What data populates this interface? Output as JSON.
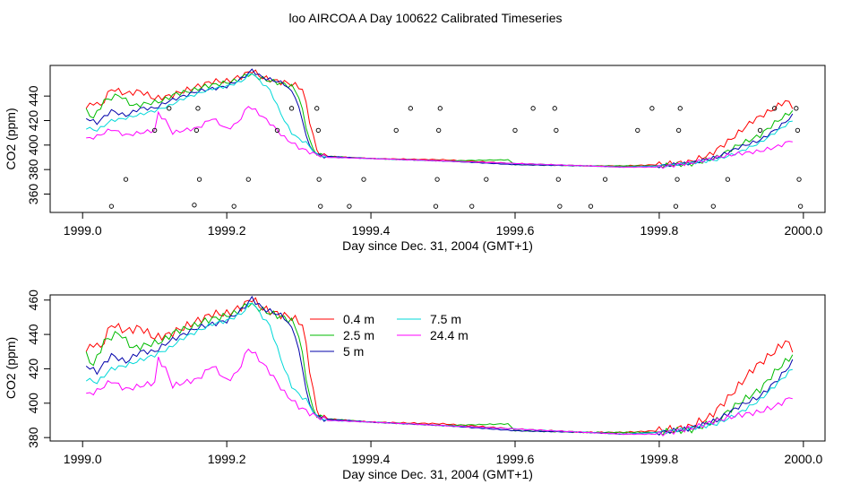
{
  "page_title": "loo AIRCOA A  Day 100622  Calibrated Timeseries",
  "chart_data": [
    {
      "type": "line",
      "xlabel": "Day since Dec. 31, 2004 (GMT+1)",
      "ylabel": "CO2 (ppm)",
      "xlim": [
        1998.955,
        2000.03
      ],
      "ylim": [
        345,
        465
      ],
      "xticks": [
        "1999.0",
        "1999.2",
        "1999.4",
        "1999.6",
        "1999.8",
        "2000.0"
      ],
      "yticks": [
        "360",
        "380",
        "400",
        "420",
        "440"
      ],
      "grid": false,
      "legend": "none",
      "series": [
        {
          "label": "0.4 m",
          "color": "#ff0000",
          "style": "line"
        },
        {
          "label": "2.5 m",
          "color": "#00bb00",
          "style": "line"
        },
        {
          "label": "5 m",
          "color": "#0000aa",
          "style": "line"
        },
        {
          "label": "7.5 m",
          "color": "#00d8d8",
          "style": "line"
        },
        {
          "label": "24.4 m",
          "color": "#ff00ff",
          "style": "line"
        },
        {
          "label": "",
          "color": "#000000",
          "style": "points",
          "points": [
            [
              1999.04,
              350
            ],
            [
              1999.06,
              372
            ],
            [
              1999.1,
              412
            ],
            [
              1999.12,
              430
            ],
            [
              1999.155,
              351
            ],
            [
              1999.158,
              412
            ],
            [
              1999.16,
              430
            ],
            [
              1999.162,
              372
            ],
            [
              1999.21,
              350
            ],
            [
              1999.23,
              372
            ],
            [
              1999.27,
              412
            ],
            [
              1999.29,
              430
            ],
            [
              1999.325,
              430
            ],
            [
              1999.327,
              412
            ],
            [
              1999.328,
              372
            ],
            [
              1999.33,
              350
            ],
            [
              1999.37,
              350
            ],
            [
              1999.39,
              372
            ],
            [
              1999.435,
              412
            ],
            [
              1999.455,
              430
            ],
            [
              1999.49,
              350
            ],
            [
              1999.492,
              372
            ],
            [
              1999.494,
              412
            ],
            [
              1999.496,
              430
            ],
            [
              1999.54,
              350
            ],
            [
              1999.56,
              372
            ],
            [
              1999.6,
              412
            ],
            [
              1999.625,
              430
            ],
            [
              1999.655,
              430
            ],
            [
              1999.657,
              412
            ],
            [
              1999.66,
              372
            ],
            [
              1999.662,
              350
            ],
            [
              1999.705,
              350
            ],
            [
              1999.725,
              372
            ],
            [
              1999.77,
              412
            ],
            [
              1999.79,
              430
            ],
            [
              1999.823,
              350
            ],
            [
              1999.825,
              372
            ],
            [
              1999.827,
              412
            ],
            [
              1999.829,
              430
            ],
            [
              1999.875,
              350
            ],
            [
              1999.895,
              372
            ],
            [
              1999.94,
              412
            ],
            [
              1999.96,
              430
            ],
            [
              1999.99,
              430
            ],
            [
              1999.992,
              412
            ],
            [
              1999.994,
              372
            ],
            [
              1999.996,
              350
            ]
          ]
        }
      ]
    },
    {
      "type": "line",
      "xlabel": "Day since Dec. 31, 2004 (GMT+1)",
      "ylabel": "CO2 (ppm)",
      "xlim": [
        1998.955,
        2000.03
      ],
      "ylim": [
        378,
        463
      ],
      "xticks": [
        "1999.0",
        "1999.2",
        "1999.4",
        "1999.6",
        "1999.8",
        "2000.0"
      ],
      "yticks": [
        "380",
        "400",
        "420",
        "440",
        "460"
      ],
      "grid": false,
      "legend": "top-center",
      "series": [
        {
          "name": "0.4 m",
          "color": "#ff0000",
          "style": "line"
        },
        {
          "name": "2.5 m",
          "color": "#00bb00",
          "style": "line"
        },
        {
          "name": "5 m",
          "color": "#0000aa",
          "style": "line"
        },
        {
          "name": "7.5 m",
          "color": "#00d8d8",
          "style": "line"
        },
        {
          "name": "24.4 m",
          "color": "#ff00ff",
          "style": "line"
        }
      ]
    }
  ],
  "series_values": {
    "x_start": 1999.005,
    "x_step": 0.005,
    "keypoints": [
      [
        [
          1999.005,
          430
        ],
        [
          1999.015,
          435
        ],
        [
          1999.025,
          432
        ],
        [
          1999.04,
          446
        ],
        [
          1999.06,
          442
        ],
        [
          1999.08,
          444
        ],
        [
          1999.1,
          438
        ],
        [
          1999.12,
          440
        ],
        [
          1999.14,
          444
        ],
        [
          1999.16,
          448
        ],
        [
          1999.18,
          452
        ],
        [
          1999.2,
          452
        ],
        [
          1999.22,
          456
        ],
        [
          1999.235,
          461
        ],
        [
          1999.25,
          455
        ],
        [
          1999.27,
          452
        ],
        [
          1999.29,
          450
        ],
        [
          1999.305,
          446
        ],
        [
          1999.315,
          420
        ],
        [
          1999.325,
          395
        ],
        [
          1999.335,
          391
        ],
        [
          1999.4,
          389
        ],
        [
          1999.5,
          388
        ],
        [
          1999.6,
          385
        ],
        [
          1999.7,
          383
        ],
        [
          1999.75,
          383
        ],
        [
          1999.8,
          384
        ],
        [
          1999.84,
          386
        ],
        [
          1999.87,
          392
        ],
        [
          1999.9,
          405
        ],
        [
          1999.93,
          420
        ],
        [
          1999.96,
          430
        ],
        [
          1999.975,
          436
        ],
        [
          1999.985,
          432
        ]
      ],
      [
        [
          1999.005,
          428
        ],
        [
          1999.015,
          422
        ],
        [
          1999.03,
          436
        ],
        [
          1999.05,
          441
        ],
        [
          1999.07,
          432
        ],
        [
          1999.09,
          434
        ],
        [
          1999.11,
          436
        ],
        [
          1999.13,
          442
        ],
        [
          1999.15,
          444
        ],
        [
          1999.17,
          448
        ],
        [
          1999.19,
          450
        ],
        [
          1999.21,
          452
        ],
        [
          1999.23,
          458
        ],
        [
          1999.25,
          454
        ],
        [
          1999.27,
          451
        ],
        [
          1999.29,
          448
        ],
        [
          1999.3,
          440
        ],
        [
          1999.31,
          415
        ],
        [
          1999.32,
          395
        ],
        [
          1999.335,
          391
        ],
        [
          1999.4,
          389
        ],
        [
          1999.5,
          387
        ],
        [
          1999.59,
          388
        ],
        [
          1999.6,
          384
        ],
        [
          1999.7,
          383
        ],
        [
          1999.75,
          383
        ],
        [
          1999.8,
          383
        ],
        [
          1999.85,
          385
        ],
        [
          1999.88,
          390
        ],
        [
          1999.91,
          400
        ],
        [
          1999.94,
          408
        ],
        [
          1999.96,
          418
        ],
        [
          1999.985,
          428
        ]
      ],
      [
        [
          1999.005,
          422
        ],
        [
          1999.02,
          418
        ],
        [
          1999.04,
          428
        ],
        [
          1999.06,
          424
        ],
        [
          1999.08,
          430
        ],
        [
          1999.1,
          430
        ],
        [
          1999.12,
          436
        ],
        [
          1999.14,
          440
        ],
        [
          1999.16,
          444
        ],
        [
          1999.18,
          446
        ],
        [
          1999.2,
          448
        ],
        [
          1999.22,
          454
        ],
        [
          1999.235,
          461
        ],
        [
          1999.25,
          455
        ],
        [
          1999.27,
          452
        ],
        [
          1999.28,
          450
        ],
        [
          1999.295,
          440
        ],
        [
          1999.305,
          420
        ],
        [
          1999.315,
          398
        ],
        [
          1999.33,
          391
        ],
        [
          1999.4,
          389
        ],
        [
          1999.5,
          387
        ],
        [
          1999.6,
          384
        ],
        [
          1999.7,
          383
        ],
        [
          1999.75,
          382
        ],
        [
          1999.8,
          383
        ],
        [
          1999.84,
          385
        ],
        [
          1999.88,
          390
        ],
        [
          1999.91,
          398
        ],
        [
          1999.94,
          404
        ],
        [
          1999.965,
          414
        ],
        [
          1999.985,
          424
        ]
      ],
      [
        [
          1999.005,
          414
        ],
        [
          1999.02,
          412
        ],
        [
          1999.04,
          420
        ],
        [
          1999.06,
          422
        ],
        [
          1999.08,
          425
        ],
        [
          1999.1,
          428
        ],
        [
          1999.12,
          432
        ],
        [
          1999.14,
          438
        ],
        [
          1999.16,
          442
        ],
        [
          1999.18,
          446
        ],
        [
          1999.2,
          448
        ],
        [
          1999.22,
          452
        ],
        [
          1999.235,
          459
        ],
        [
          1999.25,
          450
        ],
        [
          1999.26,
          445
        ],
        [
          1999.27,
          432
        ],
        [
          1999.28,
          420
        ],
        [
          1999.29,
          410
        ],
        [
          1999.3,
          405
        ],
        [
          1999.31,
          402
        ],
        [
          1999.325,
          392
        ],
        [
          1999.34,
          390
        ],
        [
          1999.4,
          389
        ],
        [
          1999.5,
          387
        ],
        [
          1999.6,
          385
        ],
        [
          1999.7,
          383
        ],
        [
          1999.75,
          382
        ],
        [
          1999.8,
          383
        ],
        [
          1999.84,
          385
        ],
        [
          1999.88,
          388
        ],
        [
          1999.91,
          394
        ],
        [
          1999.94,
          402
        ],
        [
          1999.965,
          412
        ],
        [
          1999.985,
          420
        ]
      ],
      [
        [
          1999.005,
          405
        ],
        [
          1999.02,
          407
        ],
        [
          1999.04,
          413
        ],
        [
          1999.06,
          408
        ],
        [
          1999.08,
          410
        ],
        [
          1999.1,
          412
        ],
        [
          1999.105,
          426
        ],
        [
          1999.115,
          420
        ],
        [
          1999.125,
          410
        ],
        [
          1999.14,
          412
        ],
        [
          1999.16,
          414
        ],
        [
          1999.18,
          422
        ],
        [
          1999.2,
          413
        ],
        [
          1999.215,
          418
        ],
        [
          1999.23,
          432
        ],
        [
          1999.24,
          428
        ],
        [
          1999.26,
          418
        ],
        [
          1999.28,
          406
        ],
        [
          1999.3,
          398
        ],
        [
          1999.32,
          393
        ],
        [
          1999.34,
          390
        ],
        [
          1999.4,
          389
        ],
        [
          1999.5,
          387
        ],
        [
          1999.6,
          385
        ],
        [
          1999.7,
          383
        ],
        [
          1999.75,
          382
        ],
        [
          1999.8,
          382
        ],
        [
          1999.85,
          386
        ],
        [
          1999.88,
          390
        ],
        [
          1999.91,
          393
        ],
        [
          1999.94,
          395
        ],
        [
          1999.965,
          399
        ],
        [
          1999.985,
          404
        ]
      ]
    ],
    "wiggle": [
      2.4,
      2.0,
      1.5,
      1.2,
      1.6
    ]
  },
  "legend": {
    "items": [
      {
        "label": "0.4 m",
        "color": "#ff0000"
      },
      {
        "label": "2.5 m",
        "color": "#00bb00"
      },
      {
        "label": "5 m",
        "color": "#0000aa"
      },
      {
        "label": "7.5 m",
        "color": "#00d8d8"
      },
      {
        "label": "24.4 m",
        "color": "#ff00ff"
      }
    ]
  }
}
